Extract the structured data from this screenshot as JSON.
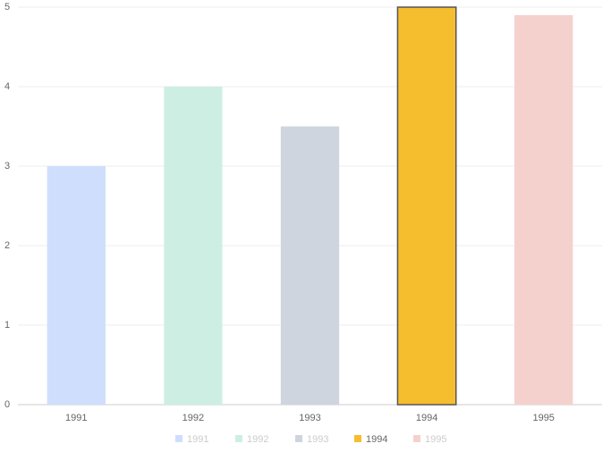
{
  "chart_data": {
    "type": "bar",
    "categories": [
      "1991",
      "1992",
      "1993",
      "1994",
      "1995"
    ],
    "values": [
      3,
      4,
      3.5,
      5,
      4.9
    ],
    "colors": [
      "#cfdefc",
      "#cdefe3",
      "#cfd5de",
      "#f5be2e",
      "#f5d1ce"
    ],
    "highlight": "1994",
    "ylim": [
      0,
      5
    ],
    "yticks": [
      0,
      1,
      2,
      3,
      4,
      5
    ],
    "grid": true
  }
}
